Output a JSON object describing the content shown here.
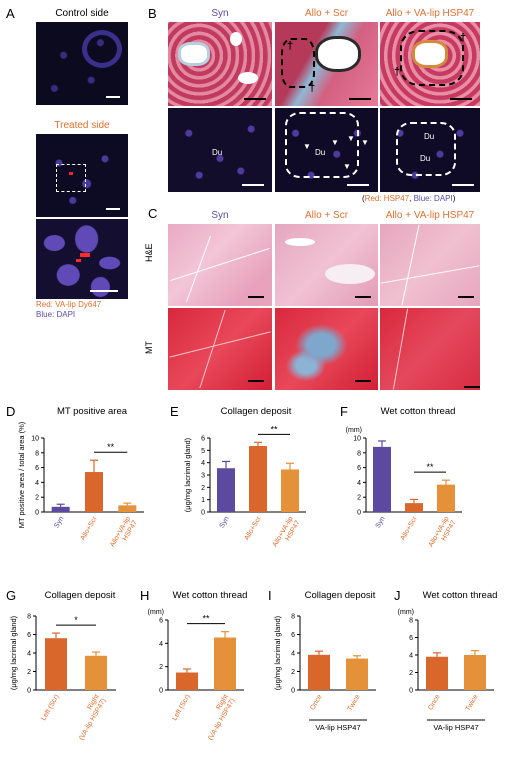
{
  "panelA": {
    "letter": "A",
    "top_title": "Control side",
    "mid_title": "Treated side",
    "legend_red": "Red: VA-lip Dy647",
    "legend_blue": "Blue: DAPI"
  },
  "panelB": {
    "letter": "B",
    "cols": [
      "Syn",
      "Allo + Scr",
      "Allo + VA-lip HSP47"
    ],
    "du": "Du",
    "dagger": "†",
    "legend_open": "(",
    "legend_red": "Red: HSP47",
    "legend_sep": ", ",
    "legend_blue": "Blue: DAPI",
    "legend_close": ")"
  },
  "panelC": {
    "letter": "C",
    "cols": [
      "Syn",
      "Allo + Scr",
      "Allo + VA-lip HSP47"
    ],
    "rows": [
      "H&E",
      "MT"
    ]
  },
  "colors": {
    "syn": "#5b4aa0",
    "scr": "#d9662b",
    "va": "#e5913a",
    "text_orange": "#e07030"
  },
  "chart_data": [
    {
      "id": "D",
      "type": "bar",
      "letter": "D",
      "title": "MT positive area",
      "ylabel": "MT positive area / total area (%)",
      "categories": [
        "Syn",
        "Allo+Scr",
        "Allo+VA-lip HSP47"
      ],
      "values": [
        0.7,
        5.4,
        0.9
      ],
      "errors": [
        0.35,
        1.6,
        0.3
      ],
      "ylim": [
        0,
        10
      ],
      "ticks": [
        0,
        2,
        4,
        6,
        8,
        10
      ],
      "sig": "**",
      "unit": ""
    },
    {
      "id": "E",
      "type": "bar",
      "letter": "E",
      "title": "Collagen deposit",
      "ylabel": "(μg/mg lacrimal gland)",
      "categories": [
        "Syn",
        "Allo+Scr",
        "Allo+VA-lip HSP47"
      ],
      "values": [
        3.55,
        5.35,
        3.45
      ],
      "errors": [
        0.55,
        0.3,
        0.5
      ],
      "ylim": [
        0,
        6
      ],
      "ticks": [
        0,
        1,
        2,
        3,
        4,
        5,
        6
      ],
      "sig": "**",
      "unit": ""
    },
    {
      "id": "F",
      "type": "bar",
      "letter": "F",
      "title": "Wet cotton thread",
      "ylabel": "",
      "categories": [
        "Syn",
        "Allo+Scr",
        "Allo+VA-lip HSP47"
      ],
      "values": [
        8.8,
        1.2,
        3.7
      ],
      "errors": [
        0.8,
        0.5,
        0.6
      ],
      "ylim": [
        0,
        10
      ],
      "ticks": [
        0,
        2,
        4,
        6,
        8,
        10
      ],
      "sig": "**",
      "unit": "(mm)"
    },
    {
      "id": "G",
      "type": "bar",
      "letter": "G",
      "title": "Collagen deposit",
      "ylabel": "(μg/mg lacrimal gland)",
      "categories": [
        "Left (Scr)",
        "Right (VA-lip HSP47)"
      ],
      "values": [
        5.6,
        3.7
      ],
      "errors": [
        0.55,
        0.4
      ],
      "ylim": [
        0,
        8
      ],
      "ticks": [
        0,
        2,
        4,
        6,
        8
      ],
      "sig": "*",
      "unit": ""
    },
    {
      "id": "H",
      "type": "bar",
      "letter": "H",
      "title": "Wet cotton thread",
      "ylabel": "",
      "categories": [
        "Left (Scr)",
        "Right (VA-lip HSP47)"
      ],
      "values": [
        1.5,
        4.5
      ],
      "errors": [
        0.3,
        0.5
      ],
      "ylim": [
        0,
        6
      ],
      "ticks": [
        0,
        2,
        4,
        6
      ],
      "sig": "**",
      "unit": "(mm)"
    },
    {
      "id": "I",
      "type": "bar",
      "letter": "I",
      "title": "Collagen deposit",
      "ylabel": "(μg/mg lacrimal gland)",
      "categories": [
        "Once",
        "Twice"
      ],
      "values": [
        3.8,
        3.4
      ],
      "errors": [
        0.4,
        0.3
      ],
      "ylim": [
        0,
        8
      ],
      "ticks": [
        0,
        2,
        4,
        6,
        8
      ],
      "sig": "",
      "unit": "",
      "group_label": "VA-lip HSP47"
    },
    {
      "id": "J",
      "type": "bar",
      "letter": "J",
      "title": "Wet cotton thread",
      "ylabel": "",
      "categories": [
        "Once",
        "Twice"
      ],
      "values": [
        3.8,
        4.0
      ],
      "errors": [
        0.45,
        0.5
      ],
      "ylim": [
        0,
        8
      ],
      "ticks": [
        0,
        2,
        4,
        6,
        8
      ],
      "sig": "",
      "unit": "(mm)",
      "group_label": "VA-lip HSP47"
    }
  ]
}
